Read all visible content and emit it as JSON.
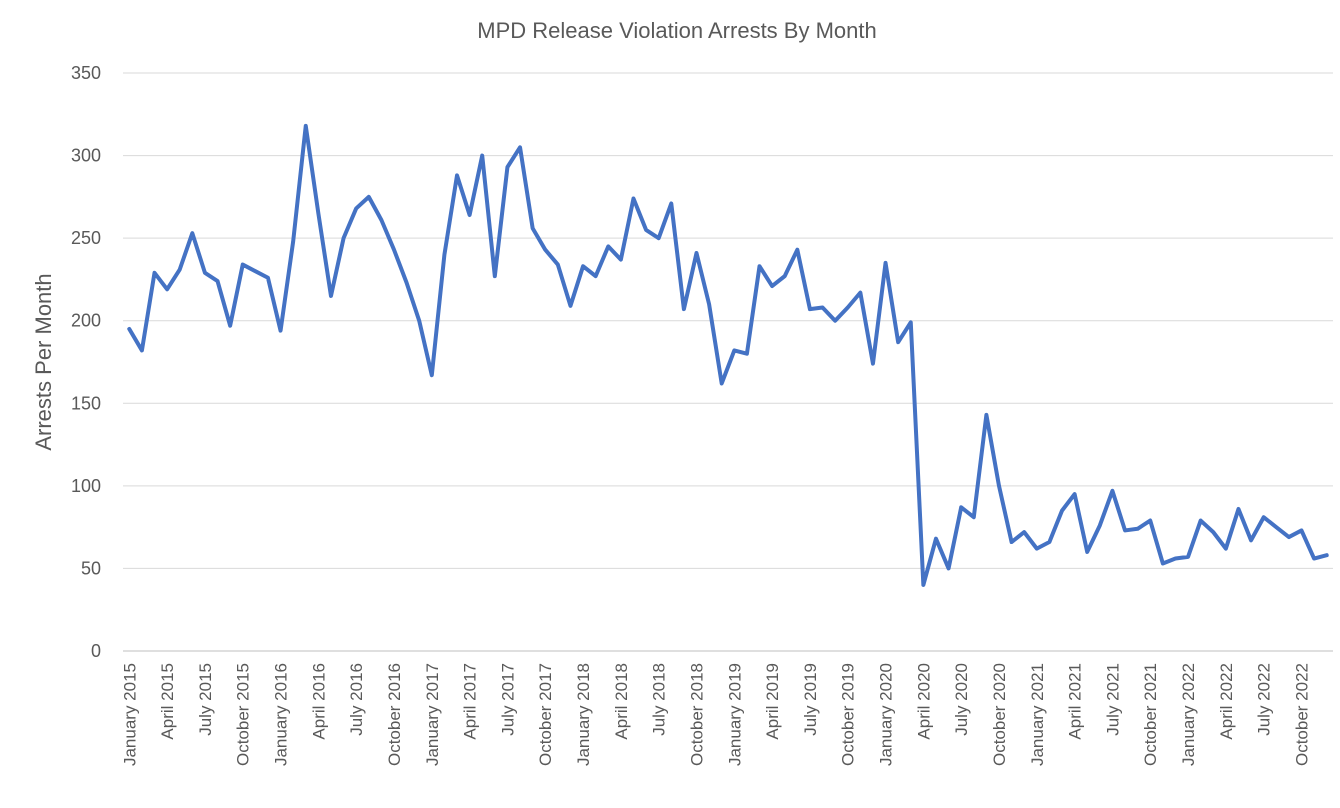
{
  "chart_data": {
    "type": "line",
    "title": "MPD Release Violation Arrests By Month",
    "xlabel": "",
    "ylabel": "Arrests Per Month",
    "ylim": [
      0,
      350
    ],
    "yticks": [
      0,
      50,
      100,
      150,
      200,
      250,
      300,
      350
    ],
    "grid": true,
    "legend": "none",
    "line_color": "#4472C4",
    "x_tick_labels": [
      "January 2015",
      "April 2015",
      "July 2015",
      "October 2015",
      "January 2016",
      "April 2016",
      "July 2016",
      "October 2016",
      "January 2017",
      "April 2017",
      "July 2017",
      "October 2017",
      "January 2018",
      "April 2018",
      "July 2018",
      "October 2018",
      "January 2019",
      "April 2019",
      "July 2019",
      "October 2019",
      "January 2020",
      "April 2020",
      "July 2020",
      "October 2020",
      "January 2021",
      "April 2021",
      "July 2021",
      "October 2021",
      "January 2022",
      "April 2022",
      "July 2022",
      "October 2022"
    ],
    "x": [
      "2015-01",
      "2015-02",
      "2015-03",
      "2015-04",
      "2015-05",
      "2015-06",
      "2015-07",
      "2015-08",
      "2015-09",
      "2015-10",
      "2015-11",
      "2015-12",
      "2016-01",
      "2016-02",
      "2016-03",
      "2016-04",
      "2016-05",
      "2016-06",
      "2016-07",
      "2016-08",
      "2016-09",
      "2016-10",
      "2016-11",
      "2016-12",
      "2017-01",
      "2017-02",
      "2017-03",
      "2017-04",
      "2017-05",
      "2017-06",
      "2017-07",
      "2017-08",
      "2017-09",
      "2017-10",
      "2017-11",
      "2017-12",
      "2018-01",
      "2018-02",
      "2018-03",
      "2018-04",
      "2018-05",
      "2018-06",
      "2018-07",
      "2018-08",
      "2018-09",
      "2018-10",
      "2018-11",
      "2018-12",
      "2019-01",
      "2019-02",
      "2019-03",
      "2019-04",
      "2019-05",
      "2019-06",
      "2019-07",
      "2019-08",
      "2019-09",
      "2019-10",
      "2019-11",
      "2019-12",
      "2020-01",
      "2020-02",
      "2020-03",
      "2020-04",
      "2020-05",
      "2020-06",
      "2020-07",
      "2020-08",
      "2020-09",
      "2020-10",
      "2020-11",
      "2020-12",
      "2021-01",
      "2021-02",
      "2021-03",
      "2021-04",
      "2021-05",
      "2021-06",
      "2021-07",
      "2021-08",
      "2021-09",
      "2021-10",
      "2021-11",
      "2021-12",
      "2022-01",
      "2022-02",
      "2022-03",
      "2022-04",
      "2022-05",
      "2022-06",
      "2022-07",
      "2022-08",
      "2022-09",
      "2022-10",
      "2022-11",
      "2022-12"
    ],
    "series": [
      {
        "values": [
          195,
          182,
          229,
          219,
          231,
          253,
          229,
          224,
          197,
          234,
          230,
          226,
          194,
          248,
          318,
          265,
          215,
          250,
          268,
          275,
          261,
          243,
          223,
          200,
          167,
          240,
          288,
          264,
          300,
          227,
          293,
          305,
          256,
          243,
          234,
          209,
          233,
          227,
          245,
          237,
          274,
          255,
          250,
          271,
          207,
          241,
          210,
          162,
          182,
          180,
          233,
          221,
          227,
          243,
          207,
          208,
          200,
          208,
          217,
          174,
          235,
          187,
          199,
          40,
          68,
          50,
          87,
          81,
          143,
          100,
          66,
          72,
          62,
          66,
          85,
          95,
          60,
          76,
          97,
          73,
          74,
          79,
          53,
          56,
          57,
          79,
          72,
          62,
          86,
          67,
          81,
          75,
          69,
          73,
          56,
          58
        ]
      }
    ]
  }
}
